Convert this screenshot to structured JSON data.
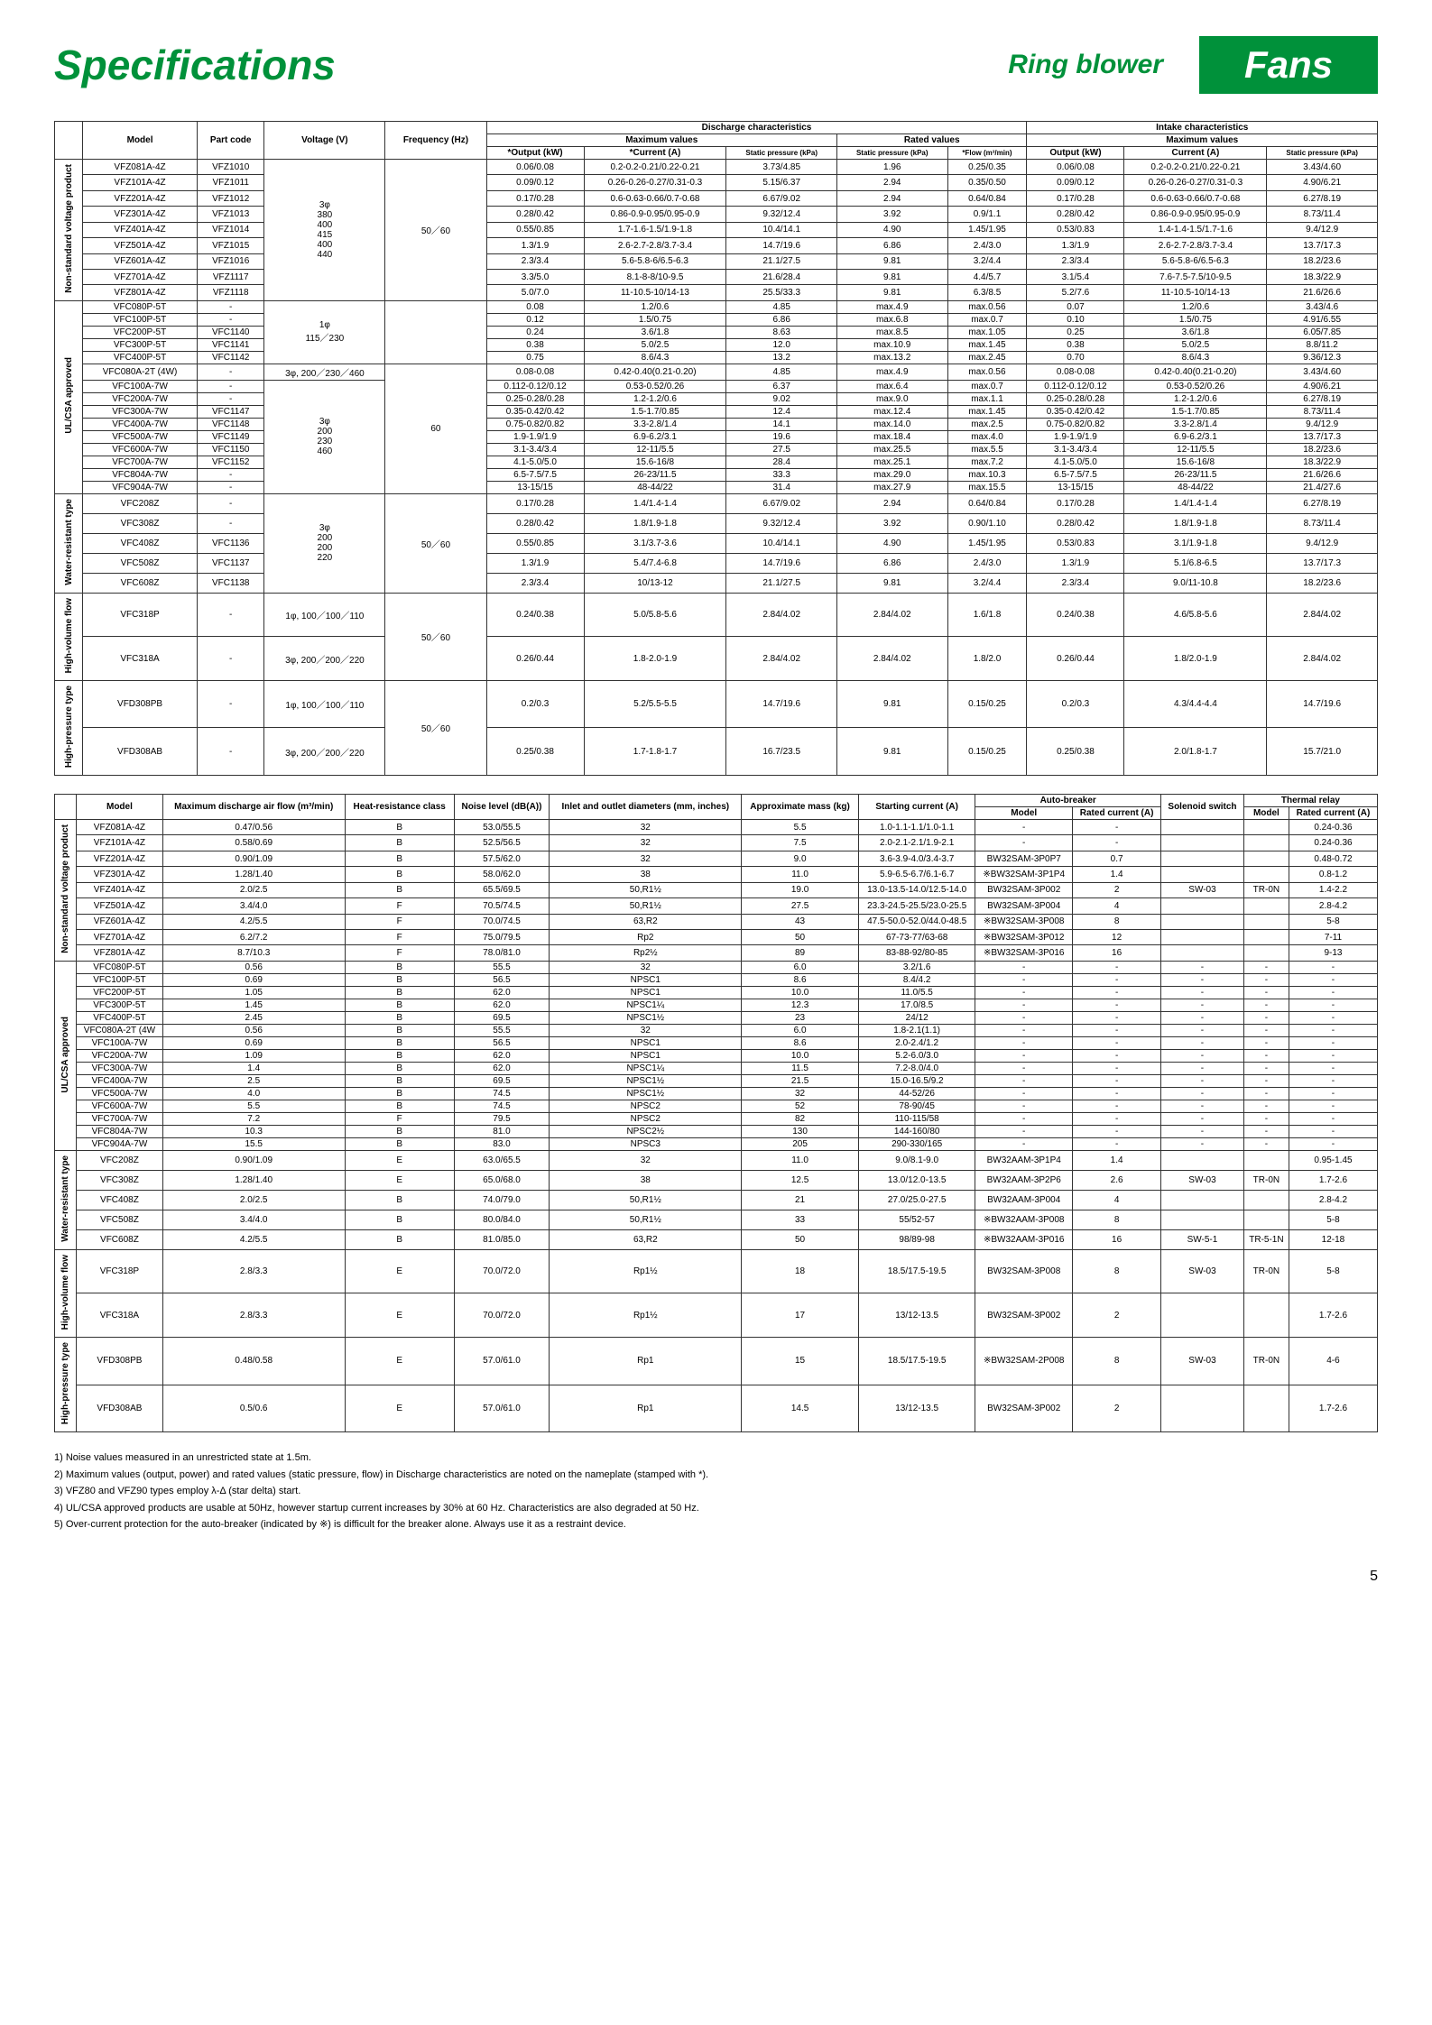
{
  "header": {
    "title": "Specifications",
    "sub": "Ring blower",
    "brand": "Fans"
  },
  "top_headers": {
    "model": "Model",
    "part": "Part code",
    "volt": "Voltage (V)",
    "freq": "Frequency (Hz)",
    "disc": "Discharge characteristics",
    "intake": "Intake characteristics",
    "max": "Maximum values",
    "rated": "Rated values",
    "out": "*Output (kW)",
    "cur": "*Current (A)",
    "sp": "Static pressure (kPa)",
    "flow": "*Flow (m³/min)",
    "out2": "Output (kW)",
    "cur2": "Current (A)"
  },
  "groups": {
    "g1": "Non-standard voltage product",
    "g2": "UL/CSA approved",
    "g3": "Water-resistant type",
    "g4": "High-volume flow",
    "g5": "High-pressure type"
  },
  "volt1": "3φ\n380\n400\n415",
  "volt1b": "400\n440",
  "volt2": "1φ\n115／230",
  "volt3": "3φ, 200／230／460",
  "volt4": "3φ\n200\n230",
  "volt4b": "460",
  "volt5": "3φ\n200",
  "volt5b": "200\n220",
  "volt6": "1φ, 100／100／110",
  "volt7": "3φ, 200／200／220",
  "volt8": "1φ, 100／100／110",
  "volt9": "3φ, 200／200／220",
  "freq1": "50／60",
  "freq2": "60",
  "freq3": "50／60",
  "freq4": "50／60",
  "freq5": "50／60",
  "rows1": [
    [
      "VFZ081A-4Z",
      "VFZ1010",
      "0.06/0.08",
      "0.2-0.2-0.21/0.22-0.21",
      "3.73/4.85",
      "1.96",
      "0.25/0.35",
      "0.06/0.08",
      "0.2-0.2-0.21/0.22-0.21",
      "3.43/4.60"
    ],
    [
      "VFZ101A-4Z",
      "VFZ1011",
      "0.09/0.12",
      "0.26-0.26-0.27/0.31-0.3",
      "5.15/6.37",
      "2.94",
      "0.35/0.50",
      "0.09/0.12",
      "0.26-0.26-0.27/0.31-0.3",
      "4.90/6.21"
    ],
    [
      "VFZ201A-4Z",
      "VFZ1012",
      "0.17/0.28",
      "0.6-0.63-0.66/0.7-0.68",
      "6.67/9.02",
      "2.94",
      "0.64/0.84",
      "0.17/0.28",
      "0.6-0.63-0.66/0.7-0.68",
      "6.27/8.19"
    ],
    [
      "VFZ301A-4Z",
      "VFZ1013",
      "0.28/0.42",
      "0.86-0.9-0.95/0.95-0.9",
      "9.32/12.4",
      "3.92",
      "0.9/1.1",
      "0.28/0.42",
      "0.86-0.9-0.95/0.95-0.9",
      "8.73/11.4"
    ],
    [
      "VFZ401A-4Z",
      "VFZ1014",
      "0.55/0.85",
      "1.7-1.6-1.5/1.9-1.8",
      "10.4/14.1",
      "4.90",
      "1.45/1.95",
      "0.53/0.83",
      "1.4-1.4-1.5/1.7-1.6",
      "9.4/12.9"
    ],
    [
      "VFZ501A-4Z",
      "VFZ1015",
      "1.3/1.9",
      "2.6-2.7-2.8/3.7-3.4",
      "14.7/19.6",
      "6.86",
      "2.4/3.0",
      "1.3/1.9",
      "2.6-2.7-2.8/3.7-3.4",
      "13.7/17.3"
    ],
    [
      "VFZ601A-4Z",
      "VFZ1016",
      "2.3/3.4",
      "5.6-5.8-6/6.5-6.3",
      "21.1/27.5",
      "9.81",
      "3.2/4.4",
      "2.3/3.4",
      "5.6-5.8-6/6.5-6.3",
      "18.2/23.6"
    ],
    [
      "VFZ701A-4Z",
      "VFZ1117",
      "3.3/5.0",
      "8.1-8-8/10-9.5",
      "21.6/28.4",
      "9.81",
      "4.4/5.7",
      "3.1/5.4",
      "7.6-7.5-7.5/10-9.5",
      "18.3/22.9"
    ],
    [
      "VFZ801A-4Z",
      "VFZ1118",
      "5.0/7.0",
      "11-10.5-10/14-13",
      "25.5/33.3",
      "9.81",
      "6.3/8.5",
      "5.2/7.6",
      "11-10.5-10/14-13",
      "21.6/26.6"
    ]
  ],
  "rows2": [
    [
      "VFC080P-5T",
      "-",
      "0.08",
      "1.2/0.6",
      "4.85",
      "max.4.9",
      "max.0.56",
      "0.07",
      "1.2/0.6",
      "3.43/4.6"
    ],
    [
      "VFC100P-5T",
      "-",
      "0.12",
      "1.5/0.75",
      "6.86",
      "max.6.8",
      "max.0.7",
      "0.10",
      "1.5/0.75",
      "4.91/6.55"
    ],
    [
      "VFC200P-5T",
      "VFC1140",
      "0.24",
      "3.6/1.8",
      "8.63",
      "max.8.5",
      "max.1.05",
      "0.25",
      "3.6/1.8",
      "6.05/7.85"
    ],
    [
      "VFC300P-5T",
      "VFC1141",
      "0.38",
      "5.0/2.5",
      "12.0",
      "max.10.9",
      "max.1.45",
      "0.38",
      "5.0/2.5",
      "8.8/11.2"
    ],
    [
      "VFC400P-5T",
      "VFC1142",
      "0.75",
      "8.6/4.3",
      "13.2",
      "max.13.2",
      "max.2.45",
      "0.70",
      "8.6/4.3",
      "9.36/12.3"
    ],
    [
      "VFC080A-2T (4W)",
      "-",
      "0.08-0.08",
      "0.42-0.40(0.21-0.20)",
      "4.85",
      "max.4.9",
      "max.0.56",
      "0.08-0.08",
      "0.42-0.40(0.21-0.20)",
      "3.43/4.60"
    ],
    [
      "VFC100A-7W",
      "-",
      "0.112-0.12/0.12",
      "0.53-0.52/0.26",
      "6.37",
      "max.6.4",
      "max.0.7",
      "0.112-0.12/0.12",
      "0.53-0.52/0.26",
      "4.90/6.21"
    ],
    [
      "VFC200A-7W",
      "-",
      "0.25-0.28/0.28",
      "1.2-1.2/0.6",
      "9.02",
      "max.9.0",
      "max.1.1",
      "0.25-0.28/0.28",
      "1.2-1.2/0.6",
      "6.27/8.19"
    ],
    [
      "VFC300A-7W",
      "VFC1147",
      "0.35-0.42/0.42",
      "1.5-1.7/0.85",
      "12.4",
      "max.12.4",
      "max.1.45",
      "0.35-0.42/0.42",
      "1.5-1.7/0.85",
      "8.73/11.4"
    ],
    [
      "VFC400A-7W",
      "VFC1148",
      "0.75-0.82/0.82",
      "3.3-2.8/1.4",
      "14.1",
      "max.14.0",
      "max.2.5",
      "0.75-0.82/0.82",
      "3.3-2.8/1.4",
      "9.4/12.9"
    ],
    [
      "VFC500A-7W",
      "VFC1149",
      "1.9-1.9/1.9",
      "6.9-6.2/3.1",
      "19.6",
      "max.18.4",
      "max.4.0",
      "1.9-1.9/1.9",
      "6.9-6.2/3.1",
      "13.7/17.3"
    ],
    [
      "VFC600A-7W",
      "VFC1150",
      "3.1-3.4/3.4",
      "12-11/5.5",
      "27.5",
      "max.25.5",
      "max.5.5",
      "3.1-3.4/3.4",
      "12-11/5.5",
      "18.2/23.6"
    ],
    [
      "VFC700A-7W",
      "VFC1152",
      "4.1-5.0/5.0",
      "15.6-16/8",
      "28.4",
      "max.25.1",
      "max.7.2",
      "4.1-5.0/5.0",
      "15.6-16/8",
      "18.3/22.9"
    ],
    [
      "VFC804A-7W",
      "-",
      "6.5-7.5/7.5",
      "26-23/11.5",
      "33.3",
      "max.29.0",
      "max.10.3",
      "6.5-7.5/7.5",
      "26-23/11.5",
      "21.6/26.6"
    ],
    [
      "VFC904A-7W",
      "-",
      "13-15/15",
      "48-44/22",
      "31.4",
      "max.27.9",
      "max.15.5",
      "13-15/15",
      "48-44/22",
      "21.4/27.6"
    ]
  ],
  "rows3": [
    [
      "VFC208Z",
      "-",
      "0.17/0.28",
      "1.4/1.4-1.4",
      "6.67/9.02",
      "2.94",
      "0.64/0.84",
      "0.17/0.28",
      "1.4/1.4-1.4",
      "6.27/8.19"
    ],
    [
      "VFC308Z",
      "-",
      "0.28/0.42",
      "1.8/1.9-1.8",
      "9.32/12.4",
      "3.92",
      "0.90/1.10",
      "0.28/0.42",
      "1.8/1.9-1.8",
      "8.73/11.4"
    ],
    [
      "VFC408Z",
      "VFC1136",
      "0.55/0.85",
      "3.1/3.7-3.6",
      "10.4/14.1",
      "4.90",
      "1.45/1.95",
      "0.53/0.83",
      "3.1/1.9-1.8",
      "9.4/12.9"
    ],
    [
      "VFC508Z",
      "VFC1137",
      "1.3/1.9",
      "5.4/7.4-6.8",
      "14.7/19.6",
      "6.86",
      "2.4/3.0",
      "1.3/1.9",
      "5.1/6.8-6.5",
      "13.7/17.3"
    ],
    [
      "VFC608Z",
      "VFC1138",
      "2.3/3.4",
      "10/13-12",
      "21.1/27.5",
      "9.81",
      "3.2/4.4",
      "2.3/3.4",
      "9.0/11-10.8",
      "18.2/23.6"
    ]
  ],
  "rows4": [
    [
      "VFC318P",
      "-",
      "0.24/0.38",
      "5.0/5.8-5.6",
      "2.84/4.02",
      "2.84/4.02",
      "1.6/1.8",
      "0.24/0.38",
      "4.6/5.8-5.6",
      "2.84/4.02"
    ],
    [
      "VFC318A",
      "-",
      "0.26/0.44",
      "1.8-2.0-1.9",
      "2.84/4.02",
      "2.84/4.02",
      "1.8/2.0",
      "0.26/0.44",
      "1.8/2.0-1.9",
      "2.84/4.02"
    ]
  ],
  "rows5": [
    [
      "VFD308PB",
      "-",
      "0.2/0.3",
      "5.2/5.5-5.5",
      "14.7/19.6",
      "9.81",
      "0.15/0.25",
      "0.2/0.3",
      "4.3/4.4-4.4",
      "14.7/19.6"
    ],
    [
      "VFD308AB",
      "-",
      "0.25/0.38",
      "1.7-1.8-1.7",
      "16.7/23.5",
      "9.81",
      "0.15/0.25",
      "0.25/0.38",
      "2.0/1.8-1.7",
      "15.7/21.0"
    ]
  ],
  "bot_headers": {
    "model": "Model",
    "airflow": "Maximum discharge air flow (m³/min)",
    "heat": "Heat-resistance class",
    "noise": "Noise level (dB(A))",
    "dia": "Inlet and outlet diameters (mm, inches)",
    "mass": "Approximate mass (kg)",
    "start": "Starting current (A)",
    "ab": "Auto-breaker",
    "abm": "Model",
    "abr": "Rated current (A)",
    "sol": "Solenoid switch",
    "tr": "Thermal relay",
    "trm": "Model",
    "trr": "Rated current (A)"
  },
  "brows1": [
    [
      "VFZ081A-4Z",
      "0.47/0.56",
      "B",
      "53.0/55.5",
      "32",
      "5.5",
      "1.0-1.1-1.1/1.0-1.1",
      "-",
      "-",
      "",
      "",
      "0.24-0.36"
    ],
    [
      "VFZ101A-4Z",
      "0.58/0.69",
      "B",
      "52.5/56.5",
      "32",
      "7.5",
      "2.0-2.1-2.1/1.9-2.1",
      "-",
      "-",
      "",
      "",
      "0.24-0.36"
    ],
    [
      "VFZ201A-4Z",
      "0.90/1.09",
      "B",
      "57.5/62.0",
      "32",
      "9.0",
      "3.6-3.9-4.0/3.4-3.7",
      "BW32SAM-3P0P7",
      "0.7",
      "",
      "",
      "0.48-0.72"
    ],
    [
      "VFZ301A-4Z",
      "1.28/1.40",
      "B",
      "58.0/62.0",
      "38",
      "11.0",
      "5.9-6.5-6.7/6.1-6.7",
      "※BW32SAM-3P1P4",
      "1.4",
      "",
      "",
      "0.8-1.2"
    ],
    [
      "VFZ401A-4Z",
      "2.0/2.5",
      "B",
      "65.5/69.5",
      "50,R1½",
      "19.0",
      "13.0-13.5-14.0/12.5-14.0",
      "BW32SAM-3P002",
      "2",
      "SW-03",
      "TR-0N",
      "1.4-2.2"
    ],
    [
      "VFZ501A-4Z",
      "3.4/4.0",
      "F",
      "70.5/74.5",
      "50,R1½",
      "27.5",
      "23.3-24.5-25.5/23.0-25.5",
      "BW32SAM-3P004",
      "4",
      "",
      "",
      "2.8-4.2"
    ],
    [
      "VFZ601A-4Z",
      "4.2/5.5",
      "F",
      "70.0/74.5",
      "63,R2",
      "43",
      "47.5-50.0-52.0/44.0-48.5",
      "※BW32SAM-3P008",
      "8",
      "",
      "",
      "5-8"
    ],
    [
      "VFZ701A-4Z",
      "6.2/7.2",
      "F",
      "75.0/79.5",
      "Rp2",
      "50",
      "67-73-77/63-68",
      "※BW32SAM-3P012",
      "12",
      "",
      "",
      "7-11"
    ],
    [
      "VFZ801A-4Z",
      "8.7/10.3",
      "F",
      "78.0/81.0",
      "Rp2½",
      "89",
      "83-88-92/80-85",
      "※BW32SAM-3P016",
      "16",
      "",
      "",
      "9-13"
    ]
  ],
  "brows2": [
    [
      "VFC080P-5T",
      "0.56",
      "B",
      "55.5",
      "32",
      "6.0",
      "3.2/1.6",
      "-",
      "-",
      "-",
      "-",
      "-"
    ],
    [
      "VFC100P-5T",
      "0.69",
      "B",
      "56.5",
      "NPSC1",
      "8.6",
      "8.4/4.2",
      "-",
      "-",
      "-",
      "-",
      "-"
    ],
    [
      "VFC200P-5T",
      "1.05",
      "B",
      "62.0",
      "NPSC1",
      "10.0",
      "11.0/5.5",
      "-",
      "-",
      "-",
      "-",
      "-"
    ],
    [
      "VFC300P-5T",
      "1.45",
      "B",
      "62.0",
      "NPSC1¼",
      "12.3",
      "17.0/8.5",
      "-",
      "-",
      "-",
      "-",
      "-"
    ],
    [
      "VFC400P-5T",
      "2.45",
      "B",
      "69.5",
      "NPSC1½",
      "23",
      "24/12",
      "-",
      "-",
      "-",
      "-",
      "-"
    ],
    [
      "VFC080A-2T (4W",
      "0.56",
      "B",
      "55.5",
      "32",
      "6.0",
      "1.8-2.1(1.1)",
      "-",
      "-",
      "-",
      "-",
      "-"
    ],
    [
      "VFC100A-7W",
      "0.69",
      "B",
      "56.5",
      "NPSC1",
      "8.6",
      "2.0-2.4/1.2",
      "-",
      "-",
      "-",
      "-",
      "-"
    ],
    [
      "VFC200A-7W",
      "1.09",
      "B",
      "62.0",
      "NPSC1",
      "10.0",
      "5.2-6.0/3.0",
      "-",
      "-",
      "-",
      "-",
      "-"
    ],
    [
      "VFC300A-7W",
      "1.4",
      "B",
      "62.0",
      "NPSC1¼",
      "11.5",
      "7.2-8.0/4.0",
      "-",
      "-",
      "-",
      "-",
      "-"
    ],
    [
      "VFC400A-7W",
      "2.5",
      "B",
      "69.5",
      "NPSC1½",
      "21.5",
      "15.0-16.5/9.2",
      "-",
      "-",
      "-",
      "-",
      "-"
    ],
    [
      "VFC500A-7W",
      "4.0",
      "B",
      "74.5",
      "NPSC1½",
      "32",
      "44-52/26",
      "-",
      "-",
      "-",
      "-",
      "-"
    ],
    [
      "VFC600A-7W",
      "5.5",
      "B",
      "74.5",
      "NPSC2",
      "52",
      "78-90/45",
      "-",
      "-",
      "-",
      "-",
      "-"
    ],
    [
      "VFC700A-7W",
      "7.2",
      "F",
      "79.5",
      "NPSC2",
      "82",
      "110-115/58",
      "-",
      "-",
      "-",
      "-",
      "-"
    ],
    [
      "VFC804A-7W",
      "10.3",
      "B",
      "81.0",
      "NPSC2½",
      "130",
      "144-160/80",
      "-",
      "-",
      "-",
      "-",
      "-"
    ],
    [
      "VFC904A-7W",
      "15.5",
      "B",
      "83.0",
      "NPSC3",
      "205",
      "290-330/165",
      "-",
      "-",
      "-",
      "-",
      "-"
    ]
  ],
  "brows3": [
    [
      "VFC208Z",
      "0.90/1.09",
      "E",
      "63.0/65.5",
      "32",
      "11.0",
      "9.0/8.1-9.0",
      "BW32AAM-3P1P4",
      "1.4",
      "",
      "",
      "0.95-1.45"
    ],
    [
      "VFC308Z",
      "1.28/1.40",
      "E",
      "65.0/68.0",
      "38",
      "12.5",
      "13.0/12.0-13.5",
      "BW32AAM-3P2P6",
      "2.6",
      "SW-03",
      "TR-0N",
      "1.7-2.6"
    ],
    [
      "VFC408Z",
      "2.0/2.5",
      "B",
      "74.0/79.0",
      "50,R1½",
      "21",
      "27.0/25.0-27.5",
      "BW32AAM-3P004",
      "4",
      "",
      "",
      "2.8-4.2"
    ],
    [
      "VFC508Z",
      "3.4/4.0",
      "B",
      "80.0/84.0",
      "50,R1½",
      "33",
      "55/52-57",
      "※BW32AAM-3P008",
      "8",
      "",
      "",
      "5-8"
    ],
    [
      "VFC608Z",
      "4.2/5.5",
      "B",
      "81.0/85.0",
      "63,R2",
      "50",
      "98/89-98",
      "※BW32AAM-3P016",
      "16",
      "SW-5-1",
      "TR-5-1N",
      "12-18"
    ]
  ],
  "brows4": [
    [
      "VFC318P",
      "2.8/3.3",
      "E",
      "70.0/72.0",
      "Rp1½",
      "18",
      "18.5/17.5-19.5",
      "BW32SAM-3P008",
      "8",
      "SW-03",
      "TR-0N",
      "5-8"
    ],
    [
      "VFC318A",
      "2.8/3.3",
      "E",
      "70.0/72.0",
      "Rp1½",
      "17",
      "13/12-13.5",
      "BW32SAM-3P002",
      "2",
      "",
      "",
      "1.7-2.6"
    ]
  ],
  "brows5": [
    [
      "VFD308PB",
      "0.48/0.58",
      "E",
      "57.0/61.0",
      "Rp1",
      "15",
      "18.5/17.5-19.5",
      "※BW32SAM-2P008",
      "8",
      "SW-03",
      "TR-0N",
      "4-6"
    ],
    [
      "VFD308AB",
      "0.5/0.6",
      "E",
      "57.0/61.0",
      "Rp1",
      "14.5",
      "13/12-13.5",
      "BW32SAM-3P002",
      "2",
      "",
      "",
      "1.7-2.6"
    ]
  ],
  "notes": [
    "1) Noise values measured in an unrestricted state at 1.5m.",
    "2) Maximum values (output, power) and rated values (static pressure, flow) in Discharge characteristics are noted on the nameplate (stamped with *).",
    "3) VFZ80 and VFZ90 types employ λ-Δ (star delta) start.",
    "4) UL/CSA approved products are usable at 50Hz, however startup current increases by 30% at 60 Hz. Characteristics are also degraded at 50 Hz.",
    "5) Over-current protection for the auto-breaker (indicated by ※) is difficult for the breaker alone. Always use it as a restraint device."
  ],
  "page": "5"
}
